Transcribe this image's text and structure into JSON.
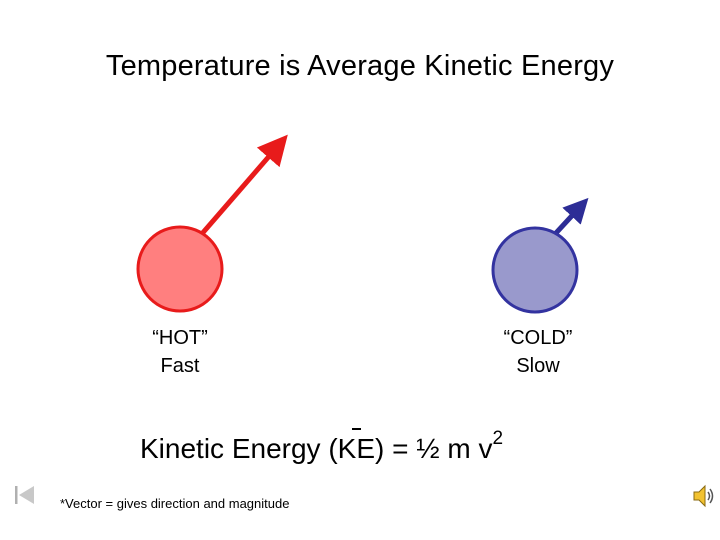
{
  "title": "Temperature is Average Kinetic Energy",
  "hot": {
    "label": "“HOT”",
    "speed": "Fast",
    "fill": "#ff7f7f",
    "stroke": "#e81b1b",
    "arrow": "#e81b1b"
  },
  "cold": {
    "label": "“COLD”",
    "speed": "Slow",
    "fill": "#9999cc",
    "stroke": "#3333a0",
    "arrow": "#2d2d96"
  },
  "formula": {
    "prefix": "Kinetic Energy (",
    "ke": "KE",
    "suffix": ") = ½ m v",
    "exponent": "2"
  },
  "footnote": "*Vector = gives direction and magnitude",
  "icons": {
    "nav": "skip-to-start-icon",
    "audio": "speaker-icon"
  }
}
